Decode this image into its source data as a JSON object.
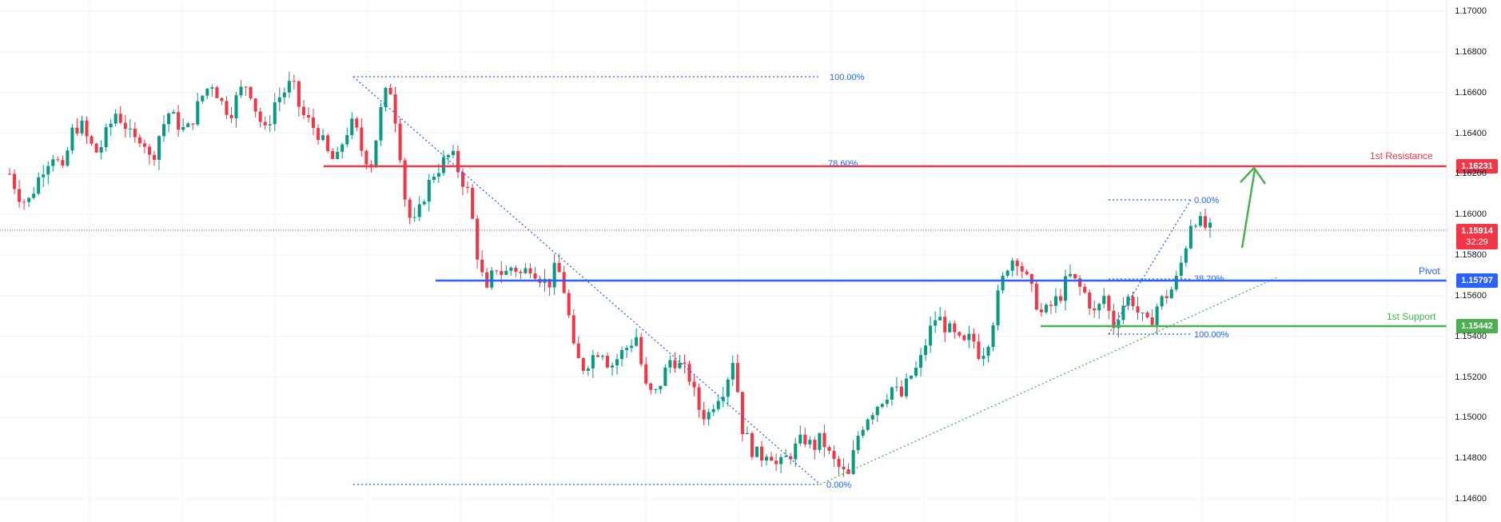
{
  "chart_data": {
    "type": "candlestick",
    "title": "",
    "xlabel": "",
    "ylabel": "",
    "ylim": [
      1.146,
      1.1705
    ],
    "y_ticks": [
      "1.17000",
      "1.16800",
      "1.16600",
      "1.16400",
      "1.16200",
      "1.16000",
      "1.15800",
      "1.15600",
      "1.15400",
      "1.15200",
      "1.15000",
      "1.14800",
      "1.14600"
    ],
    "grid": true,
    "current_price": {
      "value": "1.15914",
      "countdown": "32:29",
      "color": "#f23645"
    },
    "levels": [
      {
        "name": "1st Resistance",
        "value": "1.16231",
        "color": "#f23645"
      },
      {
        "name": "Pivot",
        "value": "1.15797",
        "color": "#2962ff"
      },
      {
        "name": "1st Support",
        "value": "1.15442",
        "color": "#4caf50"
      }
    ],
    "fib_retracement_1": {
      "levels": [
        {
          "label": "100.00%",
          "price": 1.1667
        },
        {
          "label": "78.60%",
          "price": 1.16231
        },
        {
          "label": "0.00%",
          "price": 1.1466
        }
      ],
      "color": "#2962ff"
    },
    "fib_extension_2": {
      "levels": [
        {
          "label": "0.00%",
          "price": 1.16062
        },
        {
          "label": "38.20%",
          "price": 1.158
        },
        {
          "label": "100.00%",
          "price": 1.154
        }
      ],
      "color": "#2962ff"
    },
    "trendline": {
      "from_price": 1.1466,
      "to_price": 1.158,
      "color": "#4caf50",
      "style": "dotted"
    },
    "projection_arrow": {
      "from_price": 1.1584,
      "to_price": 1.162,
      "color": "#4caf50"
    },
    "bullish_color": "#089981",
    "bearish_color": "#f23645",
    "price_path": [
      1.162,
      1.161,
      1.1605,
      1.1615,
      1.1625,
      1.163,
      1.162,
      1.164,
      1.1645,
      1.1635,
      1.163,
      1.164,
      1.165,
      1.1645,
      1.1635,
      1.164,
      1.1625,
      1.164,
      1.165,
      1.1645,
      1.164,
      1.165,
      1.166,
      1.1665,
      1.1655,
      1.165,
      1.166,
      1.1665,
      1.165,
      1.164,
      1.1655,
      1.166,
      1.1665,
      1.165,
      1.1645,
      1.164,
      1.163,
      1.1625,
      1.164,
      1.1645,
      1.163,
      1.1625,
      1.165,
      1.1665,
      1.164,
      1.16,
      1.1595,
      1.161,
      1.162,
      1.1625,
      1.163,
      1.162,
      1.161,
      1.158,
      1.156,
      1.1575,
      1.157,
      1.1575,
      1.157,
      1.1575,
      1.157,
      1.1565,
      1.1575,
      1.156,
      1.153,
      1.1525,
      1.153,
      1.1535,
      1.1525,
      1.153,
      1.1535,
      1.154,
      1.1515,
      1.151,
      1.152,
      1.153,
      1.1525,
      1.152,
      1.1505,
      1.15,
      1.151,
      1.1515,
      1.153,
      1.1495,
      1.1485,
      1.148,
      1.1485,
      1.1475,
      1.148,
      1.1485,
      1.149,
      1.1485,
      1.149,
      1.148,
      1.1475,
      1.147,
      1.149,
      1.15,
      1.1505,
      1.151,
      1.1515,
      1.151,
      1.152,
      1.1525,
      1.154,
      1.155,
      1.1545,
      1.154,
      1.1535,
      1.154,
      1.153,
      1.154,
      1.156,
      1.1575,
      1.158,
      1.157,
      1.156,
      1.155,
      1.1555,
      1.156,
      1.157,
      1.1565,
      1.156,
      1.155,
      1.156,
      1.1545,
      1.1555,
      1.156,
      1.155,
      1.1545,
      1.1555,
      1.156,
      1.1565,
      1.158,
      1.16,
      1.1595,
      1.1592
    ]
  },
  "y_axis": {
    "ticks": [
      "1.17000",
      "1.16800",
      "1.16600",
      "1.16400",
      "1.16200",
      "1.16000",
      "1.15800",
      "1.15600",
      "1.15400",
      "1.15200",
      "1.15000",
      "1.14800",
      "1.14600"
    ]
  },
  "tags": {
    "resistance": {
      "label": "1st Resistance",
      "price": "1.16231"
    },
    "current": {
      "price": "1.15914",
      "countdown": "32:29"
    },
    "pivot": {
      "label": "Pivot",
      "price": "1.15797"
    },
    "support": {
      "label": "1st Support",
      "price": "1.15442"
    }
  },
  "fib_labels": {
    "a100": "100.00%",
    "a786": "78.60%",
    "a0": "0.00%",
    "b0": "0.00%",
    "b382": "38.20%",
    "b100": "100.00%"
  }
}
